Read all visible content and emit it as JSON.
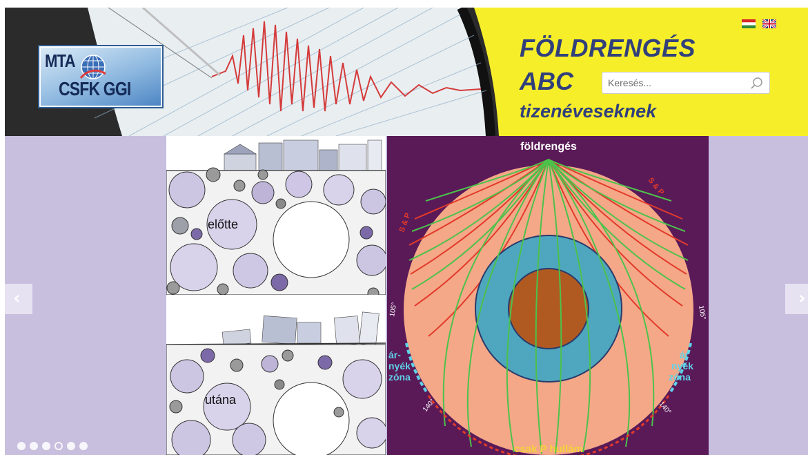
{
  "header": {
    "logo": {
      "line1": "MTA",
      "line2": "CSFK GGI"
    },
    "title_line1": "FÖLDRENGÉS",
    "title_line2": "ABC",
    "title_line3": "tizenéveseknek",
    "search": {
      "placeholder": "Keresés...",
      "icon": "search-icon"
    },
    "languages": [
      {
        "code": "hu",
        "icon": "flag-hungary-icon",
        "colors": [
          "#d62828",
          "#ffffff",
          "#2e8b3a"
        ]
      },
      {
        "code": "en",
        "icon": "flag-uk-icon"
      }
    ],
    "colors": {
      "yellow": "#f7ee2a",
      "title": "#31407b"
    }
  },
  "slider": {
    "prev_arrow": "‹",
    "next_arrow": "›",
    "dots": {
      "count": 6,
      "active_index": 3
    },
    "slide_left": {
      "label_before": "előtte",
      "label_after": "utána"
    },
    "slide_right": {
      "label_top": "földrengés",
      "label_sp": "S & P",
      "label_shadow_left": [
        "ár-",
        "nyék",
        "zóna"
      ],
      "label_shadow_right": [
        "ár",
        "nyék",
        "zóna"
      ],
      "angle_105": "105°",
      "angle_140": "140°",
      "label_bottom": "csak P hullám"
    },
    "colors": {
      "background": "#c8bfdf",
      "mantle": "#f4a888",
      "outer_core": "#4fa6bf",
      "inner_core": "#b05a22",
      "board": "#5a1a58"
    }
  }
}
